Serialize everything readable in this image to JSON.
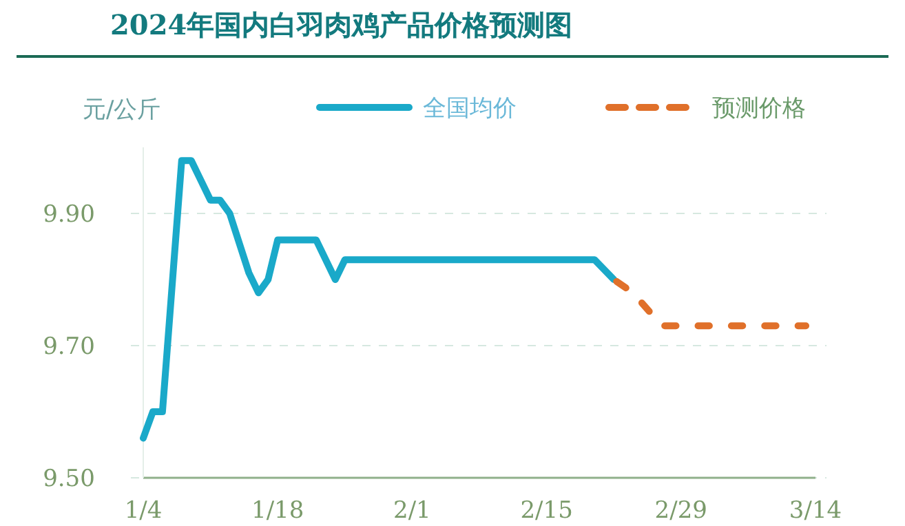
{
  "chart_data": {
    "type": "line",
    "title": "2024年国内白羽肉鸡产品价格预测图",
    "ylabel": "元/公斤",
    "xlim": [
      "--01-04",
      "--03-14"
    ],
    "xticks": [
      {
        "value": "--01-04",
        "label": "1/4"
      },
      {
        "value": "--01-18",
        "label": "1/18"
      },
      {
        "value": "--02-01",
        "label": "2/1"
      },
      {
        "value": "--02-15",
        "label": "2/15"
      },
      {
        "value": "--02-29",
        "label": "2/29"
      },
      {
        "value": "--03-14",
        "label": "3/14"
      }
    ],
    "ylim": [
      9.5,
      10.0
    ],
    "yticks": [
      {
        "value": 9.5,
        "label": "9.50"
      },
      {
        "value": 9.7,
        "label": "9.70"
      },
      {
        "value": 9.9,
        "label": "9.90"
      }
    ],
    "grid": "y",
    "legend": "top",
    "marker": "none",
    "series": [
      {
        "name": "全国均价",
        "color": "#1aa9c9",
        "line_style": "solid",
        "x": [
          "--01-04",
          "--01-05",
          "--01-06",
          "--01-08",
          "--01-09",
          "--01-11",
          "--01-12",
          "--01-13",
          "--01-15",
          "--01-16",
          "--01-17",
          "--01-18",
          "--01-22",
          "--01-24",
          "--01-25",
          "--02-20",
          "--02-22"
        ],
        "values": [
          9.56,
          9.6,
          9.6,
          9.98,
          9.98,
          9.92,
          9.92,
          9.9,
          9.81,
          9.78,
          9.8,
          9.86,
          9.86,
          9.8,
          9.83,
          9.83,
          9.8
        ]
      },
      {
        "name": "预测价格",
        "color": "#e0702a",
        "line_style": "dashed",
        "x": [
          "--02-22",
          "--02-24",
          "--02-27",
          "--03-13"
        ],
        "values": [
          9.8,
          9.78,
          9.73,
          9.73
        ]
      }
    ]
  }
}
